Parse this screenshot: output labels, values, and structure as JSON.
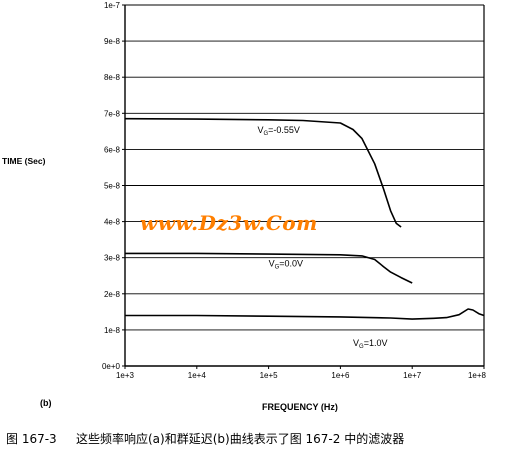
{
  "chart_data": {
    "type": "line",
    "ylabel": "TIME (Sec)",
    "xlabel": "FREQUENCY (Hz)",
    "panel_label": "(b)",
    "x_scale": "log",
    "xlim": [
      1000,
      100000000
    ],
    "ylim": [
      0,
      1e-07
    ],
    "x_ticks": [
      1000,
      10000,
      100000,
      1000000,
      10000000,
      100000000
    ],
    "x_tick_labels": [
      "1e+3",
      "1e+4",
      "1e+5",
      "1e+6",
      "1e+7",
      "1e+8"
    ],
    "y_ticks": [
      0,
      1e-08,
      2e-08,
      3e-08,
      4e-08,
      5e-08,
      6e-08,
      7e-08,
      8e-08,
      9e-08,
      1e-07
    ],
    "y_tick_labels": [
      "0e+0",
      "1e-8",
      "2e-8",
      "3e-8",
      "4e-8",
      "5e-8",
      "6e-8",
      "7e-8",
      "8e-8",
      "9e-8",
      "1e-7"
    ],
    "grid": "horizontal",
    "series": [
      {
        "name": "VG=-0.55V",
        "color": "#000000",
        "x": [
          1000,
          10000,
          100000,
          300000,
          1000000,
          1500000,
          2000000,
          3000000,
          4000000,
          5000000,
          6000000,
          7000000
        ],
        "y": [
          6.85e-08,
          6.84e-08,
          6.82e-08,
          6.8e-08,
          6.73e-08,
          6.55e-08,
          6.3e-08,
          5.6e-08,
          4.9e-08,
          4.3e-08,
          3.95e-08,
          3.85e-08
        ]
      },
      {
        "name": "VG=0.0V",
        "color": "#000000",
        "x": [
          1000,
          10000,
          100000,
          1000000,
          2000000,
          3000000,
          4000000,
          5000000,
          7000000,
          10000000
        ],
        "y": [
          3.12e-08,
          3.12e-08,
          3.1e-08,
          3.08e-08,
          3.05e-08,
          2.95e-08,
          2.75e-08,
          2.6e-08,
          2.45e-08,
          2.3e-08
        ]
      },
      {
        "name": "VG=1.0V",
        "color": "#000000",
        "x": [
          1000,
          10000,
          100000,
          1000000,
          5000000,
          10000000,
          20000000,
          30000000,
          45000000,
          60000000,
          70000000,
          85000000,
          100000000
        ],
        "y": [
          1.4e-08,
          1.4e-08,
          1.38e-08,
          1.36e-08,
          1.33e-08,
          1.3e-08,
          1.32e-08,
          1.34e-08,
          1.42e-08,
          1.58e-08,
          1.55e-08,
          1.45e-08,
          1.4e-08
        ]
      }
    ],
    "annotations": [
      {
        "main": "V",
        "sub": "G",
        "rest": "=-0.55V",
        "x": 70000,
        "y": 6.45e-08
      },
      {
        "main": "V",
        "sub": "G",
        "rest": "=0.0V",
        "x": 100000,
        "y": 2.75e-08
      },
      {
        "main": "V",
        "sub": "G",
        "rest": "=1.0V",
        "x": 1500000,
        "y": 5.5e-09
      }
    ]
  },
  "watermark": {
    "text": "www.Dz3w.Com",
    "color": "#ff7f00"
  },
  "caption": {
    "figure_number": "图 167-3",
    "text": "这些频率响应(a)和群延迟(b)曲线表示了图 167-2 中的滤波器"
  }
}
